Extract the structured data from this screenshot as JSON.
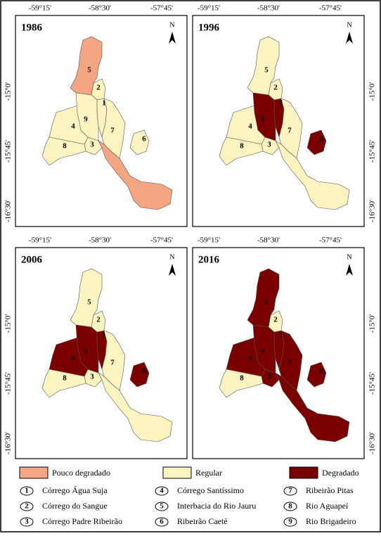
{
  "panels": [
    {
      "year": "1986",
      "basin_colors": [
        "#fbf3c0",
        "#fbf3c0",
        "#fbf3c0",
        "#fbf3c0",
        "#f4a582",
        "#fbf3c0",
        "#fbf3c0",
        "#fbf3c0",
        "#fbf3c0"
      ]
    },
    {
      "year": "1996",
      "basin_colors": [
        "#7a0000",
        "#fbf3c0",
        "#fbf3c0",
        "#fbf3c0",
        "#fbf3c0",
        "#7a0000",
        "#fbf3c0",
        "#fbf3c0",
        "#7a0000"
      ]
    },
    {
      "year": "2006",
      "basin_colors": [
        "#7a0000",
        "#fbf3c0",
        "#fbf3c0",
        "#7a0000",
        "#fbf3c0",
        "#7a0000",
        "#fbf3c0",
        "#fbf3c0",
        "#7a0000"
      ]
    },
    {
      "year": "2016",
      "basin_colors": [
        "#7a0000",
        "#fbf3c0",
        "#7a0000",
        "#7a0000",
        "#7a0000",
        "#7a0000",
        "#7a0000",
        "#fbf3c0",
        "#7a0000"
      ]
    }
  ],
  "axes": {
    "x_ticks": [
      "-59°15'",
      "-58°30'",
      "-57°45'"
    ],
    "y_ticks": [
      "-15°0'",
      "-15°45'",
      "-16°30'"
    ]
  },
  "north": "N",
  "legend": {
    "classes": [
      {
        "label": "Pouco degradado",
        "color": "#f4a582"
      },
      {
        "label": "Regular",
        "color": "#fbf3c0"
      },
      {
        "label": "Degradado",
        "color": "#7a0000"
      }
    ],
    "basins": [
      {
        "number": "1",
        "name": "Córrego Água Suja"
      },
      {
        "number": "2",
        "name": "Córrego do Sangue"
      },
      {
        "number": "3",
        "name": "Córrego Padre Ribeirão"
      },
      {
        "number": "4",
        "name": "Córrego Santíssimo"
      },
      {
        "number": "5",
        "name": "Interbacia do Rio Jauru"
      },
      {
        "number": "6",
        "name": "Ribeirão Caeté"
      },
      {
        "number": "7",
        "name": "Ribeirão Pitas"
      },
      {
        "number": "8",
        "name": "Rio Aguapeí"
      },
      {
        "number": "9",
        "name": "Rio Brigadeiro"
      }
    ]
  }
}
